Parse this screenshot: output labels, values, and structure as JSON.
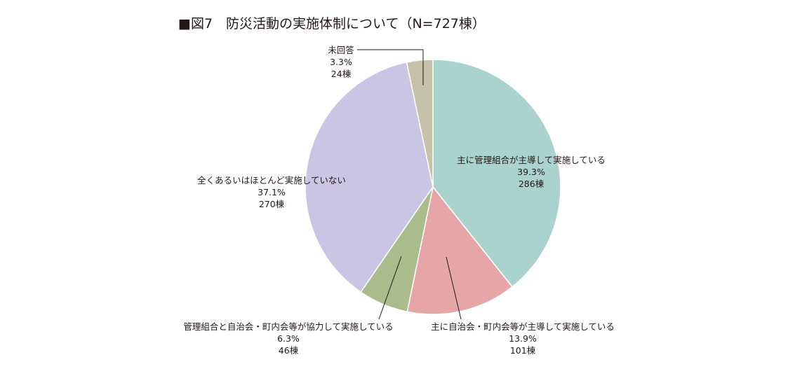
{
  "chart_data": {
    "type": "pie",
    "title": "■図7　防災活動の実施体制について（N=727棟）",
    "unit": "棟",
    "total": 727,
    "slices": [
      {
        "label": "主に管理組合が主導して実施している",
        "percent_label": "39.3%",
        "count_label": "286棟",
        "value": 286,
        "percent": 39.3,
        "color": "#abd3cd"
      },
      {
        "label": "主に自治会・町内会等が主導して実施している",
        "percent_label": "13.9%",
        "count_label": "101棟",
        "value": 101,
        "percent": 13.9,
        "color": "#e6a6a8"
      },
      {
        "label": "管理組合と自治会・町内会等が協力して実施している",
        "percent_label": "6.3%",
        "count_label": "46棟",
        "value": 46,
        "percent": 6.3,
        "color": "#abbc8c"
      },
      {
        "label": "全くあるいはほとんど実施していない",
        "percent_label": "37.1%",
        "count_label": "270棟",
        "value": 270,
        "percent": 37.1,
        "color": "#cac5e2"
      },
      {
        "label": "未回答",
        "percent_label": "3.3%",
        "count_label": "24棟",
        "value": 24,
        "percent": 3.3,
        "color": "#c4c2a9"
      }
    ]
  }
}
